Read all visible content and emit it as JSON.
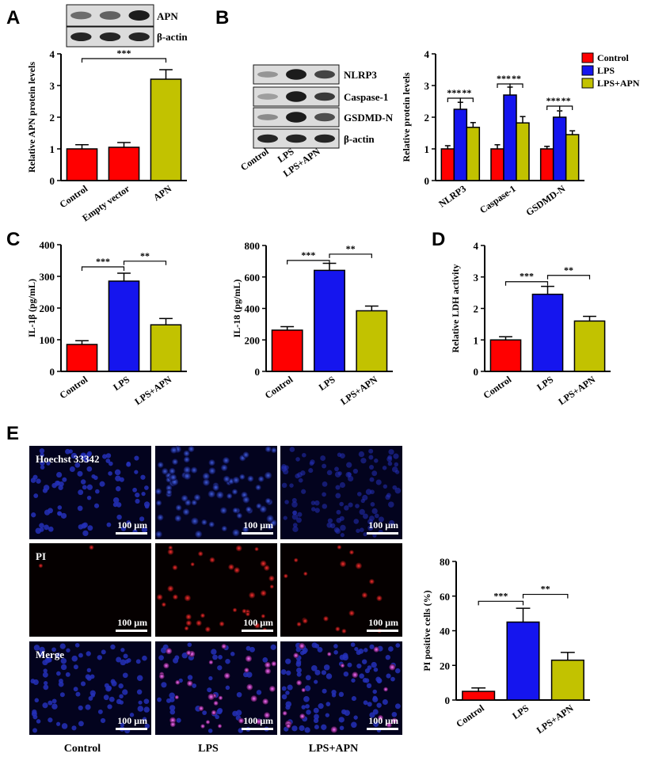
{
  "panels": {
    "A": "A",
    "B": "B",
    "C": "C",
    "D": "D",
    "E": "E"
  },
  "colors": {
    "control": "#ff0000",
    "lps": "#1515ee",
    "apn": "#c2c200"
  },
  "blot_A": {
    "labels": [
      "APN",
      "β-actin"
    ],
    "lanes": 3
  },
  "blot_B": {
    "labels": [
      "NLRP3",
      "Caspase-1",
      "GSDMD-N",
      "β-actin"
    ],
    "lanes": [
      "Control",
      "LPS",
      "LPS+APN"
    ]
  },
  "legend_B": [
    "Control",
    "LPS",
    "LPS+APN"
  ],
  "micro": {
    "rows": [
      "Hoechst 33342",
      "PI",
      "Merge"
    ],
    "cols": [
      "Control",
      "LPS",
      "LPS+APN"
    ],
    "scale_bar": "100 μm"
  },
  "chart_data": [
    {
      "id": "A",
      "type": "bar",
      "categories": [
        "Control",
        "Empty vector",
        "APN"
      ],
      "values": [
        1.0,
        1.05,
        3.2
      ],
      "errors": [
        0.13,
        0.15,
        0.3
      ],
      "colors": [
        "control",
        "control",
        "apn"
      ],
      "ylabel": "Relative APN protein levels",
      "ylim": [
        0,
        4
      ],
      "ticks": [
        0,
        1,
        2,
        3,
        4
      ],
      "sig": [
        {
          "from": 0,
          "to": 2,
          "label": "***",
          "y": 3.85
        }
      ]
    },
    {
      "id": "B",
      "type": "bar",
      "groups": [
        "NLRP3",
        "Caspase-1",
        "GSDMD-N"
      ],
      "series": [
        {
          "name": "Control",
          "values": [
            1.0,
            1.0,
            1.0
          ],
          "errors": [
            0.1,
            0.13,
            0.08
          ]
        },
        {
          "name": "LPS",
          "values": [
            2.25,
            2.7,
            2.0
          ],
          "errors": [
            0.22,
            0.25,
            0.2
          ]
        },
        {
          "name": "LPS+APN",
          "values": [
            1.68,
            1.82,
            1.45
          ],
          "errors": [
            0.15,
            0.2,
            0.12
          ]
        }
      ],
      "ylabel": "Relative protein levels",
      "ylim": [
        0,
        4
      ],
      "ticks": [
        0,
        1,
        2,
        3,
        4
      ],
      "sig": [
        {
          "group": 0,
          "from": 0,
          "to": 1,
          "label": "***",
          "y": 2.6
        },
        {
          "group": 0,
          "from": 1,
          "to": 2,
          "label": "**",
          "y": 2.6
        },
        {
          "group": 1,
          "from": 0,
          "to": 1,
          "label": "***",
          "y": 3.05
        },
        {
          "group": 1,
          "from": 1,
          "to": 2,
          "label": "**",
          "y": 3.05
        },
        {
          "group": 2,
          "from": 0,
          "to": 1,
          "label": "***",
          "y": 2.35
        },
        {
          "group": 2,
          "from": 1,
          "to": 2,
          "label": "**",
          "y": 2.35
        }
      ]
    },
    {
      "id": "C1",
      "type": "bar",
      "categories": [
        "Control",
        "LPS",
        "LPS+APN"
      ],
      "values": [
        85,
        285,
        147
      ],
      "errors": [
        12,
        25,
        20
      ],
      "colors": [
        "control",
        "lps",
        "apn"
      ],
      "ylabel": "IL-1β (pg/mL)",
      "ylim": [
        0,
        400
      ],
      "ticks": [
        0,
        100,
        200,
        300,
        400
      ],
      "sig": [
        {
          "from": 0,
          "to": 1,
          "label": "***",
          "y": 330
        },
        {
          "from": 1,
          "to": 2,
          "label": "**",
          "y": 348
        }
      ]
    },
    {
      "id": "C2",
      "type": "bar",
      "categories": [
        "Control",
        "LPS",
        "LPS+APN"
      ],
      "values": [
        262,
        642,
        385
      ],
      "errors": [
        22,
        45,
        30
      ],
      "colors": [
        "control",
        "lps",
        "apn"
      ],
      "ylabel": "IL-18 (pg/mL)",
      "ylim": [
        0,
        800
      ],
      "ticks": [
        0,
        200,
        400,
        600,
        800
      ],
      "sig": [
        {
          "from": 0,
          "to": 1,
          "label": "***",
          "y": 705
        },
        {
          "from": 1,
          "to": 2,
          "label": "**",
          "y": 745
        }
      ]
    },
    {
      "id": "D",
      "type": "bar",
      "categories": [
        "Control",
        "LPS",
        "LPS+APN"
      ],
      "values": [
        1.0,
        2.45,
        1.6
      ],
      "errors": [
        0.1,
        0.25,
        0.15
      ],
      "colors": [
        "control",
        "lps",
        "apn"
      ],
      "ylabel": "Relative LDH activity",
      "ylim": [
        0,
        4
      ],
      "ticks": [
        0,
        1,
        2,
        3,
        4
      ],
      "sig": [
        {
          "from": 0,
          "to": 1,
          "label": "***",
          "y": 2.85
        },
        {
          "from": 1,
          "to": 2,
          "label": "**",
          "y": 3.05
        }
      ]
    },
    {
      "id": "E",
      "type": "bar",
      "categories": [
        "Control",
        "LPS",
        "LPS+APN"
      ],
      "values": [
        5,
        45,
        23
      ],
      "errors": [
        2,
        8,
        4.5
      ],
      "colors": [
        "control",
        "lps",
        "apn"
      ],
      "ylabel": "PI positive cells (%)",
      "ylim": [
        0,
        80
      ],
      "ticks": [
        0,
        20,
        40,
        60,
        80
      ],
      "sig": [
        {
          "from": 0,
          "to": 1,
          "label": "***",
          "y": 57
        },
        {
          "from": 1,
          "to": 2,
          "label": "**",
          "y": 61
        }
      ]
    }
  ]
}
